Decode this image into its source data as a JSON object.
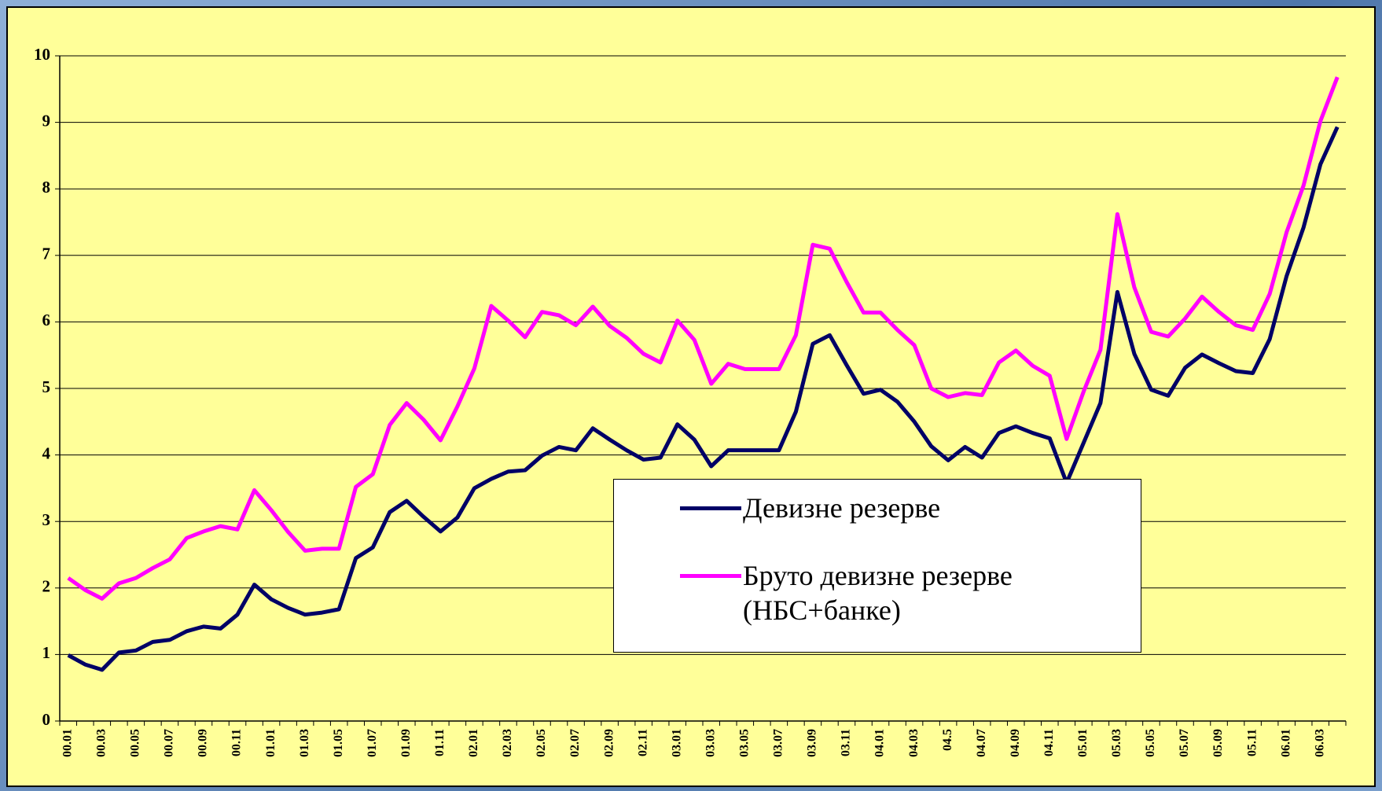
{
  "chart_data": {
    "type": "line",
    "categories": [
      "00.01",
      null,
      "00.03",
      null,
      "00.05",
      null,
      "00.07",
      null,
      "00.09",
      null,
      "00.11",
      null,
      "01.01",
      null,
      "01.03",
      null,
      "01.05",
      null,
      "01.07",
      null,
      "01.09",
      null,
      "01.11",
      null,
      "02.01",
      null,
      "02.03",
      null,
      "02.05",
      null,
      "02.07",
      null,
      "02.09",
      null,
      "02.11",
      null,
      "03.01",
      null,
      "03.03",
      null,
      "03.05",
      null,
      "03.07",
      null,
      "03.09",
      null,
      "03.11",
      null,
      "04.01",
      null,
      "04.03",
      null,
      "04.5",
      null,
      "04.07",
      null,
      "04.09",
      null,
      "04.11",
      null,
      "05.01",
      null,
      "05.03",
      null,
      "05.05",
      null,
      "05.07",
      null,
      "05.09",
      null,
      "05.11",
      null,
      "06.01",
      null,
      "06.03",
      null
    ],
    "series": [
      {
        "name": "Девизне резерве",
        "color": "#000066",
        "values": [
          0.99,
          0.85,
          0.77,
          1.03,
          1.06,
          1.19,
          1.22,
          1.35,
          1.42,
          1.39,
          1.6,
          2.05,
          1.83,
          1.7,
          1.6,
          1.63,
          1.68,
          2.45,
          2.61,
          3.14,
          3.31,
          3.07,
          2.85,
          3.06,
          3.5,
          3.64,
          3.75,
          3.77,
          3.99,
          4.12,
          4.07,
          4.4,
          4.23,
          4.07,
          3.93,
          3.96,
          4.46,
          4.23,
          3.83,
          4.07,
          4.07,
          4.07,
          4.07,
          4.65,
          5.67,
          5.8,
          5.35,
          4.92,
          4.98,
          4.8,
          4.5,
          4.13,
          3.92,
          4.12,
          3.96,
          4.33,
          4.43,
          4.33,
          4.25,
          3.58,
          4.18,
          4.78,
          6.45,
          5.52,
          4.98,
          4.89,
          5.31,
          5.51,
          5.38,
          5.26,
          5.23,
          5.74,
          6.69,
          7.42,
          8.37,
          8.93
        ]
      },
      {
        "name": "Бруто девизне резерве (НБС+банке)",
        "color": "#ff00ff",
        "values": [
          2.15,
          1.97,
          1.84,
          2.07,
          2.15,
          2.3,
          2.43,
          2.75,
          2.85,
          2.93,
          2.88,
          3.47,
          3.17,
          2.84,
          2.56,
          2.59,
          2.59,
          3.52,
          3.71,
          4.45,
          4.78,
          4.53,
          4.22,
          4.73,
          5.3,
          6.24,
          6.02,
          5.77,
          6.15,
          6.1,
          5.95,
          6.23,
          5.94,
          5.76,
          5.52,
          5.39,
          6.02,
          5.73,
          5.07,
          5.37,
          5.29,
          5.29,
          5.29,
          5.8,
          7.16,
          7.1,
          6.6,
          6.14,
          6.14,
          5.88,
          5.65,
          5.0,
          4.87,
          4.93,
          4.9,
          5.39,
          5.57,
          5.34,
          5.19,
          4.24,
          4.95,
          5.58,
          7.62,
          6.52,
          5.85,
          5.78,
          6.05,
          6.38,
          6.15,
          5.95,
          5.88,
          6.42,
          7.35,
          8.05,
          9.02,
          9.68
        ]
      }
    ],
    "ylim": [
      0,
      10
    ],
    "yticks": [
      0,
      1,
      2,
      3,
      4,
      5,
      6,
      7,
      8,
      9,
      10
    ],
    "grid": true
  }
}
